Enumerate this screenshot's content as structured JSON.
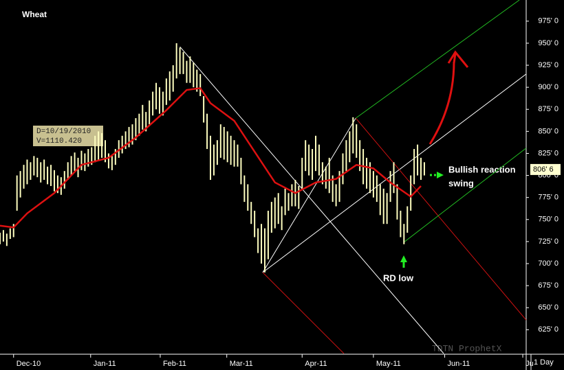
{
  "chart_data": {
    "type": "ohlc",
    "title": "Wheat",
    "xlim": [
      0,
      155
    ],
    "ylim": [
      598,
      999
    ],
    "xticks": [
      {
        "value": 4,
        "label": "Dec-10"
      },
      {
        "value": 26.7,
        "label": "Jan-11"
      },
      {
        "value": 47.2,
        "label": "Feb-11"
      },
      {
        "value": 66.8,
        "label": "Mar-11"
      },
      {
        "value": 89,
        "label": "Apr-11"
      },
      {
        "value": 110,
        "label": "May-11"
      },
      {
        "value": 131,
        "label": "Jun-11"
      },
      {
        "value": 154,
        "label": "Ju"
      }
    ],
    "yticks": [
      {
        "value": 625,
        "label": "625' 0"
      },
      {
        "value": 650,
        "label": "650' 0"
      },
      {
        "value": 675,
        "label": "675' 0"
      },
      {
        "value": 700,
        "label": "700' 0"
      },
      {
        "value": 725,
        "label": "725' 0"
      },
      {
        "value": 750,
        "label": "750' 0"
      },
      {
        "value": 775,
        "label": "775' 0"
      },
      {
        "value": 800,
        "label": "800' 0"
      },
      {
        "value": 825,
        "label": "825' 0"
      },
      {
        "value": 850,
        "label": "850' 0"
      },
      {
        "value": 875,
        "label": "875' 0"
      },
      {
        "value": 900,
        "label": "900' 0"
      },
      {
        "value": 925,
        "label": "925' 0"
      },
      {
        "value": 950,
        "label": "950' 0"
      },
      {
        "value": 975,
        "label": "975' 0"
      }
    ],
    "bar_color": "#ffffc0",
    "high": [
      735,
      738,
      734,
      740,
      745,
      800,
      805,
      812,
      818,
      815,
      822,
      820,
      815,
      818,
      810,
      812,
      806,
      800,
      798,
      805,
      815,
      822,
      826,
      820,
      828,
      825,
      830,
      832,
      845,
      850,
      848,
      840,
      825,
      822,
      830,
      840,
      845,
      850,
      855,
      858,
      865,
      870,
      880,
      872,
      885,
      895,
      905,
      900,
      895,
      910,
      918,
      925,
      950,
      945,
      940,
      930,
      935,
      928,
      920,
      915,
      890,
      870,
      845,
      835,
      840,
      858,
      855,
      850,
      845,
      840,
      835,
      820,
      800,
      790,
      770,
      760,
      740,
      745,
      740,
      760,
      770,
      775,
      780,
      765,
      785,
      780,
      790,
      795,
      788,
      820,
      840,
      835,
      830,
      845,
      835,
      815,
      810,
      820,
      800,
      790,
      805,
      825,
      840,
      850,
      866,
      858,
      840,
      830,
      820,
      815,
      805,
      800,
      790,
      785,
      780,
      805,
      815,
      790,
      760,
      745,
      765,
      800,
      830,
      835,
      820,
      815
    ],
    "low": [
      722,
      725,
      720,
      728,
      730,
      760,
      775,
      785,
      790,
      795,
      800,
      798,
      792,
      795,
      790,
      788,
      782,
      780,
      778,
      785,
      795,
      800,
      805,
      798,
      806,
      805,
      810,
      812,
      815,
      818,
      820,
      815,
      808,
      806,
      812,
      820,
      825,
      830,
      832,
      835,
      840,
      845,
      852,
      850,
      858,
      868,
      875,
      870,
      868,
      880,
      885,
      895,
      910,
      915,
      915,
      905,
      905,
      900,
      895,
      890,
      860,
      830,
      795,
      800,
      812,
      820,
      818,
      815,
      812,
      810,
      810,
      790,
      770,
      760,
      745,
      730,
      712,
      700,
      690,
      705,
      735,
      740,
      745,
      738,
      755,
      760,
      765,
      765,
      762,
      785,
      805,
      800,
      795,
      805,
      800,
      790,
      785,
      780,
      770,
      765,
      770,
      790,
      805,
      815,
      825,
      820,
      805,
      790,
      785,
      780,
      775,
      770,
      755,
      745,
      745,
      770,
      780,
      750,
      730,
      722,
      735,
      760,
      790,
      800,
      795,
      800
    ],
    "moving_average": {
      "color": "#dd1111",
      "x": [
        0,
        4,
        8,
        16,
        24,
        32,
        40,
        49,
        55,
        59,
        62,
        69,
        75,
        81,
        87,
        93,
        99,
        105,
        110,
        115,
        121,
        124
      ],
      "values": [
        743,
        741,
        757,
        780,
        812,
        820,
        843,
        874,
        897,
        899,
        882,
        862,
        827,
        792,
        780,
        792,
        796,
        812,
        808,
        792,
        776,
        788
      ]
    },
    "lines": [
      {
        "color": "#ffffff",
        "x": [
          53,
          130.7
        ],
        "values": [
          946,
          598
        ]
      },
      {
        "color": "#ffffff",
        "x": [
          77.4,
          104.8
        ],
        "values": [
          690,
          865
        ]
      },
      {
        "color": "#ffffff",
        "x": [
          77.4,
          155
        ],
        "values": [
          690,
          915
        ]
      },
      {
        "color": "#cc1111",
        "x": [
          77.4,
          101.3
        ],
        "values": [
          690,
          598
        ]
      },
      {
        "color": "#cc1111",
        "x": [
          104.8,
          155
        ],
        "values": [
          865,
          636
        ]
      },
      {
        "color": "#22bb22",
        "x": [
          104.8,
          153
        ],
        "values": [
          865,
          999
        ]
      },
      {
        "color": "#22bb22",
        "x": [
          118.9,
          155
        ],
        "values": [
          724,
          831
        ]
      }
    ],
    "last_value": {
      "value": 806.75,
      "label": "806' 6"
    },
    "tooltip": [
      "D=10/19/2010",
      "V=1110.420"
    ],
    "annotations": [
      "Bullish reaction",
      "swing",
      "RD low"
    ],
    "watermark": "TDTN ProphetX",
    "interval": "1 Day"
  }
}
